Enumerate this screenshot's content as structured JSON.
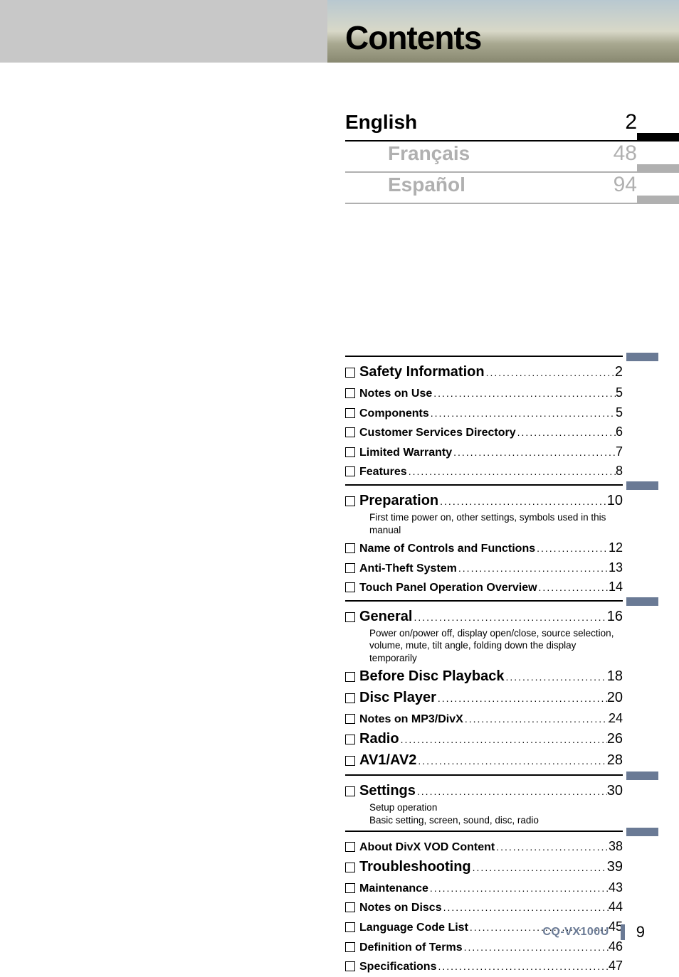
{
  "title": "Contents",
  "languages": [
    {
      "name": "English",
      "page": "2",
      "active": true
    },
    {
      "name": "Français",
      "page": "48",
      "active": false
    },
    {
      "name": "Español",
      "page": "94",
      "active": false
    }
  ],
  "sections": [
    {
      "items": [
        {
          "title": "Safety Information",
          "page": "2",
          "size": "lg"
        },
        {
          "title": "Notes on Use",
          "page": "5",
          "size": "md"
        },
        {
          "title": "Components",
          "page": "5",
          "size": "md"
        },
        {
          "title": "Customer Services Directory",
          "page": "6",
          "size": "md"
        },
        {
          "title": "Limited Warranty",
          "page": "7",
          "size": "md"
        },
        {
          "title": "Features",
          "page": "8",
          "size": "md"
        }
      ]
    },
    {
      "items": [
        {
          "title": "Preparation",
          "page": "10",
          "size": "lg",
          "desc": "First time power on, other settings, symbols used in this manual"
        },
        {
          "title": "Name of Controls and Functions",
          "page": "12",
          "size": "md"
        },
        {
          "title": "Anti-Theft System",
          "page": "13",
          "size": "md"
        },
        {
          "title": "Touch Panel Operation Overview",
          "page": "14",
          "size": "md"
        }
      ]
    },
    {
      "items": [
        {
          "title": "General",
          "page": "16",
          "size": "lg",
          "desc": "Power on/power off, display open/close, source selection, volume, mute, tilt angle, folding down the display temporarily"
        },
        {
          "title": "Before Disc Playback",
          "page": "18",
          "size": "lg"
        },
        {
          "title": "Disc Player",
          "page": "20",
          "size": "lg"
        },
        {
          "title": "Notes on MP3/DivX",
          "page": "24",
          "size": "md"
        },
        {
          "title": "Radio",
          "page": "26",
          "size": "lg"
        },
        {
          "title": "AV1/AV2",
          "page": "28",
          "size": "lg"
        }
      ]
    },
    {
      "items": [
        {
          "title": "Settings",
          "page": "30",
          "size": "lg",
          "desc": "Setup operation\nBasic setting, screen, sound, disc, radio"
        }
      ]
    },
    {
      "items": [
        {
          "title": "About DivX VOD Content",
          "page": "38",
          "size": "md"
        },
        {
          "title": "Troubleshooting",
          "page": "39",
          "size": "lg"
        },
        {
          "title": "Maintenance",
          "page": "43",
          "size": "md"
        },
        {
          "title": "Notes on Discs",
          "page": "44",
          "size": "md"
        },
        {
          "title": "Language Code List",
          "page": "45",
          "size": "md"
        },
        {
          "title": "Definition of Terms",
          "page": "46",
          "size": "md"
        },
        {
          "title": "Specifications",
          "page": "47",
          "size": "md"
        }
      ]
    }
  ],
  "footer": {
    "model": "CQ-VX100U",
    "page": "9"
  },
  "colors": {
    "accent": "#6a7a95",
    "inactive": "#b0b0b0"
  }
}
